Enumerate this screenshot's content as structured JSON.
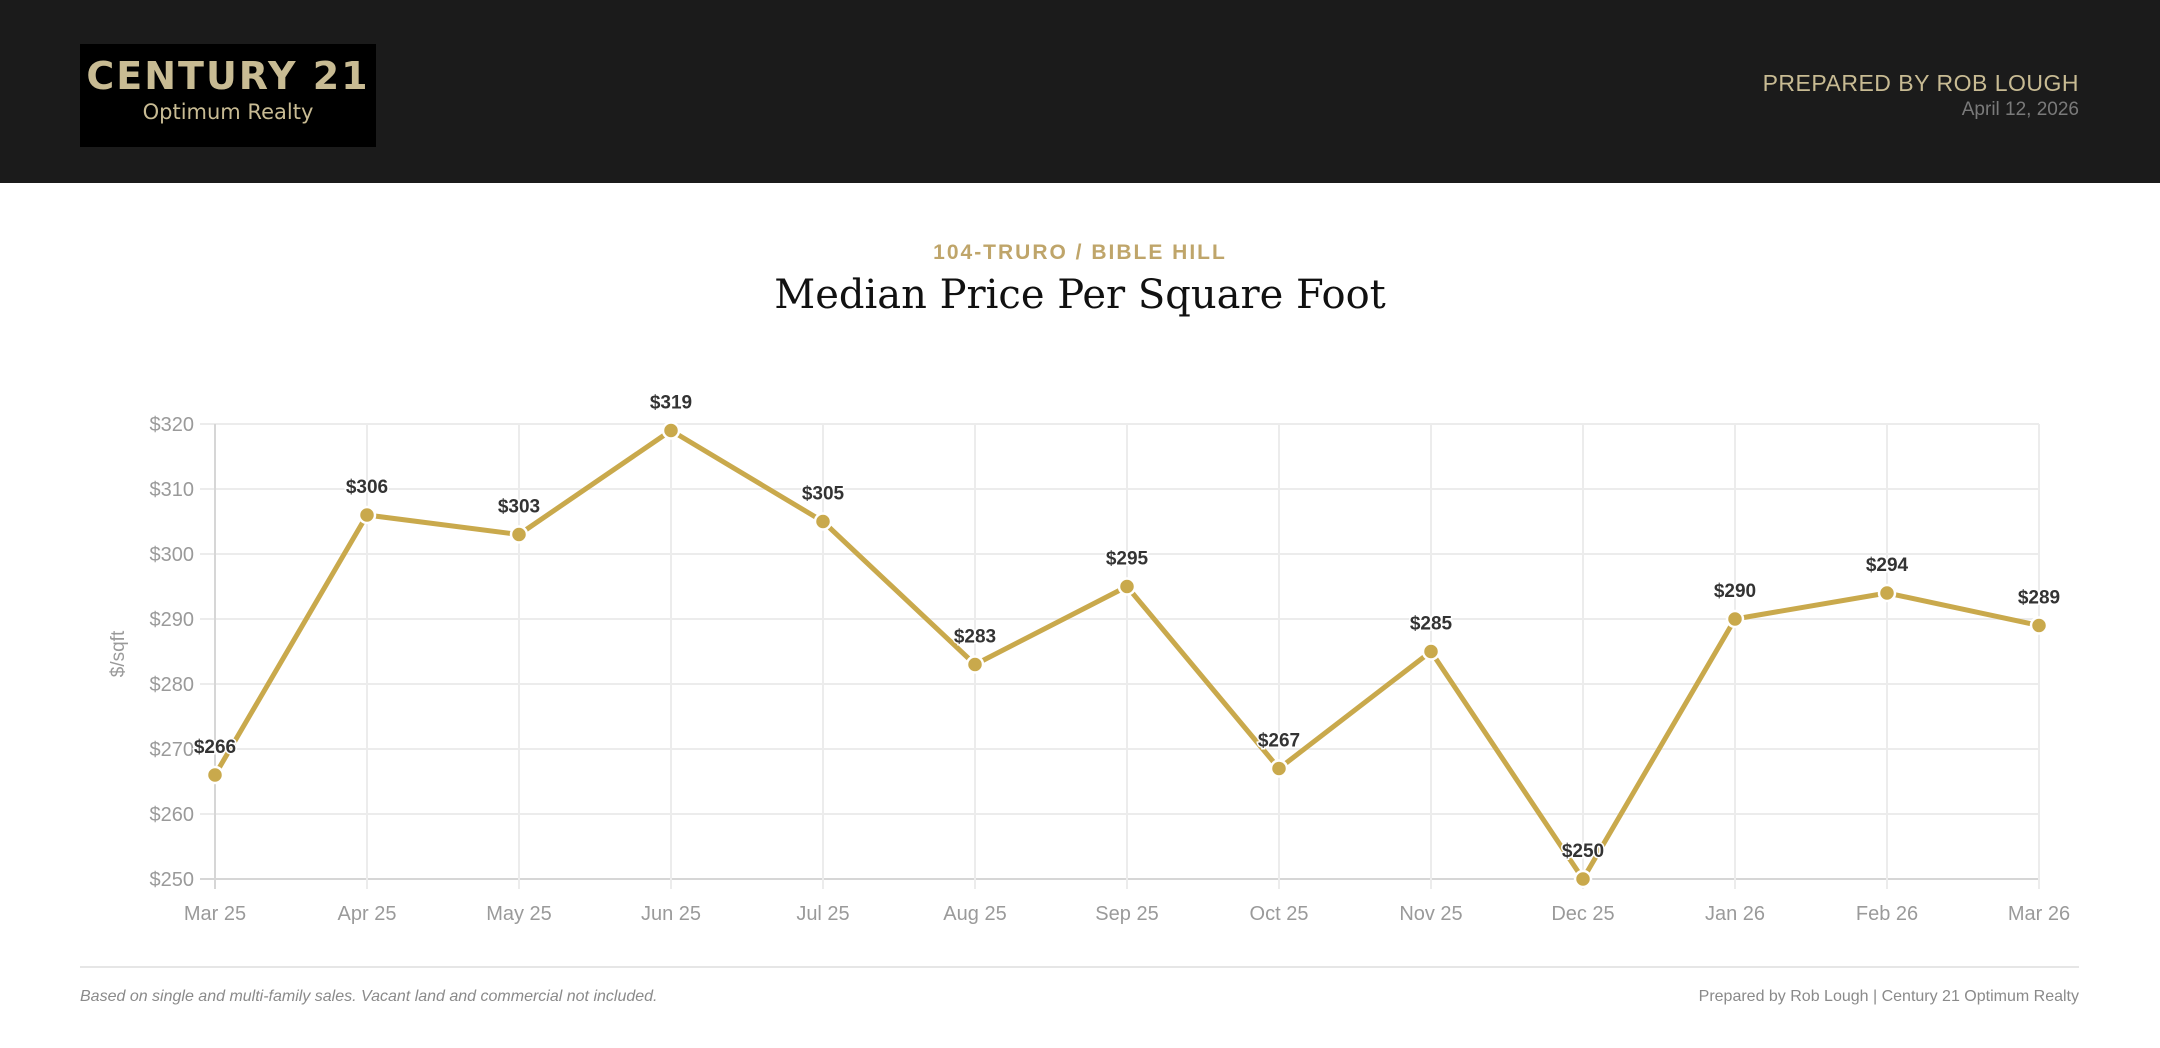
{
  "header": {
    "logo_text": "CENTURY 21",
    "logo_subtext": "Optimum Realty",
    "prepared_by": "PREPARED BY ROB LOUGH",
    "date": "April 12, 2026"
  },
  "subtitle": "104-TRURO / BIBLE HILL",
  "title": "Median Price Per Square Foot",
  "footer": {
    "note": "Based on single and multi-family sales. Vacant land and commercial not included.",
    "credit": "Prepared by Rob Lough | Century 21 Optimum Realty"
  },
  "chart_data": {
    "type": "line",
    "title": "Median Price Per Square Foot",
    "xlabel": "",
    "ylabel": "$/sqft",
    "categories": [
      "Mar 25",
      "Apr 25",
      "May 25",
      "Jun 25",
      "Jul 25",
      "Aug 25",
      "Sep 25",
      "Oct 25",
      "Nov 25",
      "Dec 25",
      "Jan 26",
      "Feb 26",
      "Mar 26"
    ],
    "values": [
      266,
      306,
      303,
      319,
      305,
      283,
      295,
      267,
      285,
      250,
      290,
      294,
      289
    ],
    "data_labels": [
      "$266",
      "$306",
      "$303",
      "$319",
      "$305",
      "$283",
      "$295",
      "$267",
      "$285",
      "$250",
      "$290",
      "$294",
      "$289"
    ],
    "ylim": [
      250,
      320
    ],
    "yticks": [
      250,
      260,
      270,
      280,
      290,
      300,
      310,
      320
    ],
    "ytick_labels": [
      "$250",
      "$260",
      "$270",
      "$280",
      "$290",
      "$300",
      "$310",
      "$320"
    ],
    "grid": true,
    "legend": "none",
    "line_color": "#c9a94c"
  }
}
